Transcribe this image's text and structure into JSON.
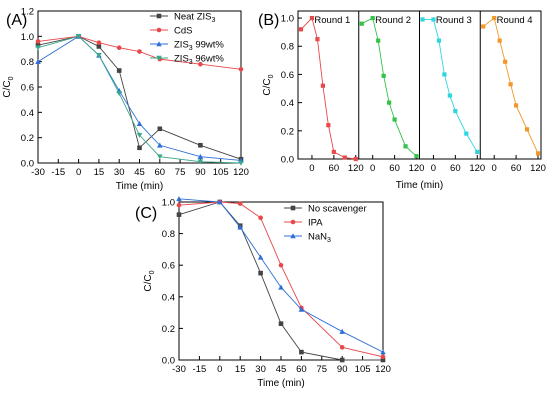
{
  "chart_data": [
    {
      "panel": "(A)",
      "type": "line",
      "xlabel": "Time (min)",
      "ylabel": "C/C",
      "ylabel_sub": "0",
      "xlim": [
        -30,
        120
      ],
      "ylim": [
        0.0,
        1.2
      ],
      "xticks": [
        -30,
        -15,
        0,
        15,
        30,
        45,
        60,
        75,
        90,
        105,
        120
      ],
      "yticks": [
        0.0,
        0.2,
        0.4,
        0.6,
        0.8,
        1.0,
        1.2
      ],
      "legend_position": "top-right",
      "series": [
        {
          "name": "Neat ZIS",
          "name_sub": "3",
          "color": "#444444",
          "marker": "square",
          "x": [
            -30,
            0,
            15,
            30,
            45,
            60,
            90,
            120
          ],
          "y": [
            0.93,
            1.0,
            0.92,
            0.73,
            0.12,
            0.27,
            0.14,
            0.03
          ]
        },
        {
          "name": "CdS",
          "name_sub": "",
          "color": "#e8484a",
          "marker": "circle",
          "x": [
            -30,
            0,
            15,
            30,
            45,
            60,
            90,
            120
          ],
          "y": [
            0.96,
            1.0,
            0.95,
            0.91,
            0.88,
            0.82,
            0.78,
            0.74
          ]
        },
        {
          "name": "ZIS",
          "name_sub": "3",
          "name_suffix": " 99wt%",
          "color": "#2e6fd8",
          "marker": "triangle-up",
          "x": [
            -30,
            0,
            15,
            30,
            45,
            60,
            90,
            120
          ],
          "y": [
            0.8,
            1.0,
            0.85,
            0.57,
            0.31,
            0.14,
            0.05,
            0.02
          ]
        },
        {
          "name": "ZIS",
          "name_sub": "3",
          "name_suffix": " 96wt%",
          "color": "#3aa88a",
          "marker": "triangle-down",
          "x": [
            -30,
            0,
            15,
            30,
            45,
            60,
            90,
            120
          ],
          "y": [
            0.91,
            1.0,
            0.85,
            0.55,
            0.22,
            0.05,
            0.01,
            0.0
          ]
        }
      ]
    },
    {
      "panel": "(B)",
      "type": "line",
      "xlabel": "Time (min)",
      "ylabel": "C/C",
      "ylabel_sub": "0",
      "ylim": [
        0.0,
        1.05
      ],
      "yticks": [
        0.0,
        0.2,
        0.4,
        0.6,
        0.8,
        1.0
      ],
      "xticks": [
        0,
        60,
        120
      ],
      "rounds": [
        {
          "name": "Round 1",
          "color": "#e8484a",
          "x": [
            -30,
            0,
            15,
            30,
            45,
            60,
            90,
            120
          ],
          "y": [
            0.92,
            1.0,
            0.85,
            0.52,
            0.24,
            0.05,
            0.01,
            0.0
          ]
        },
        {
          "name": "Round 2",
          "color": "#33c24a",
          "x": [
            -30,
            0,
            15,
            30,
            45,
            60,
            90,
            120
          ],
          "y": [
            0.96,
            1.0,
            0.84,
            0.59,
            0.4,
            0.28,
            0.09,
            0.02
          ]
        },
        {
          "name": "Round 3",
          "color": "#2ed6e0",
          "x": [
            -30,
            0,
            15,
            30,
            45,
            60,
            90,
            120
          ],
          "y": [
            0.99,
            0.99,
            0.84,
            0.6,
            0.45,
            0.34,
            0.18,
            0.05
          ]
        },
        {
          "name": "Round 4",
          "color": "#f2972a",
          "x": [
            -30,
            0,
            15,
            30,
            45,
            60,
            90,
            120
          ],
          "y": [
            0.94,
            1.0,
            0.84,
            0.69,
            0.53,
            0.38,
            0.21,
            0.04
          ]
        }
      ]
    },
    {
      "panel": "(C)",
      "type": "line",
      "xlabel": "Time (min)",
      "ylabel": "C/C",
      "ylabel_sub": "0",
      "xlim": [
        -30,
        120
      ],
      "ylim": [
        0.0,
        1.0
      ],
      "xticks": [
        -30,
        -15,
        0,
        15,
        30,
        45,
        60,
        75,
        90,
        105,
        120
      ],
      "yticks": [
        0.0,
        0.2,
        0.4,
        0.6,
        0.8,
        1.0
      ],
      "legend_position": "top-right",
      "series": [
        {
          "name": "No scavenger",
          "name_sub": "",
          "color": "#444444",
          "marker": "square",
          "x": [
            -30,
            0,
            15,
            30,
            45,
            60,
            90,
            120
          ],
          "y": [
            0.92,
            1.0,
            0.85,
            0.55,
            0.23,
            0.05,
            0.0,
            0.0
          ]
        },
        {
          "name": "IPA",
          "name_sub": "",
          "color": "#e8484a",
          "marker": "circle",
          "x": [
            -30,
            0,
            15,
            30,
            45,
            60,
            90,
            120
          ],
          "y": [
            0.98,
            1.0,
            0.99,
            0.9,
            0.6,
            0.33,
            0.08,
            0.02
          ]
        },
        {
          "name": "NaN",
          "name_sub": "3",
          "color": "#2e6fd8",
          "marker": "triangle-up",
          "x": [
            -30,
            0,
            15,
            30,
            45,
            60,
            90,
            120
          ],
          "y": [
            1.02,
            1.0,
            0.84,
            0.65,
            0.46,
            0.32,
            0.18,
            0.05
          ]
        }
      ]
    }
  ]
}
